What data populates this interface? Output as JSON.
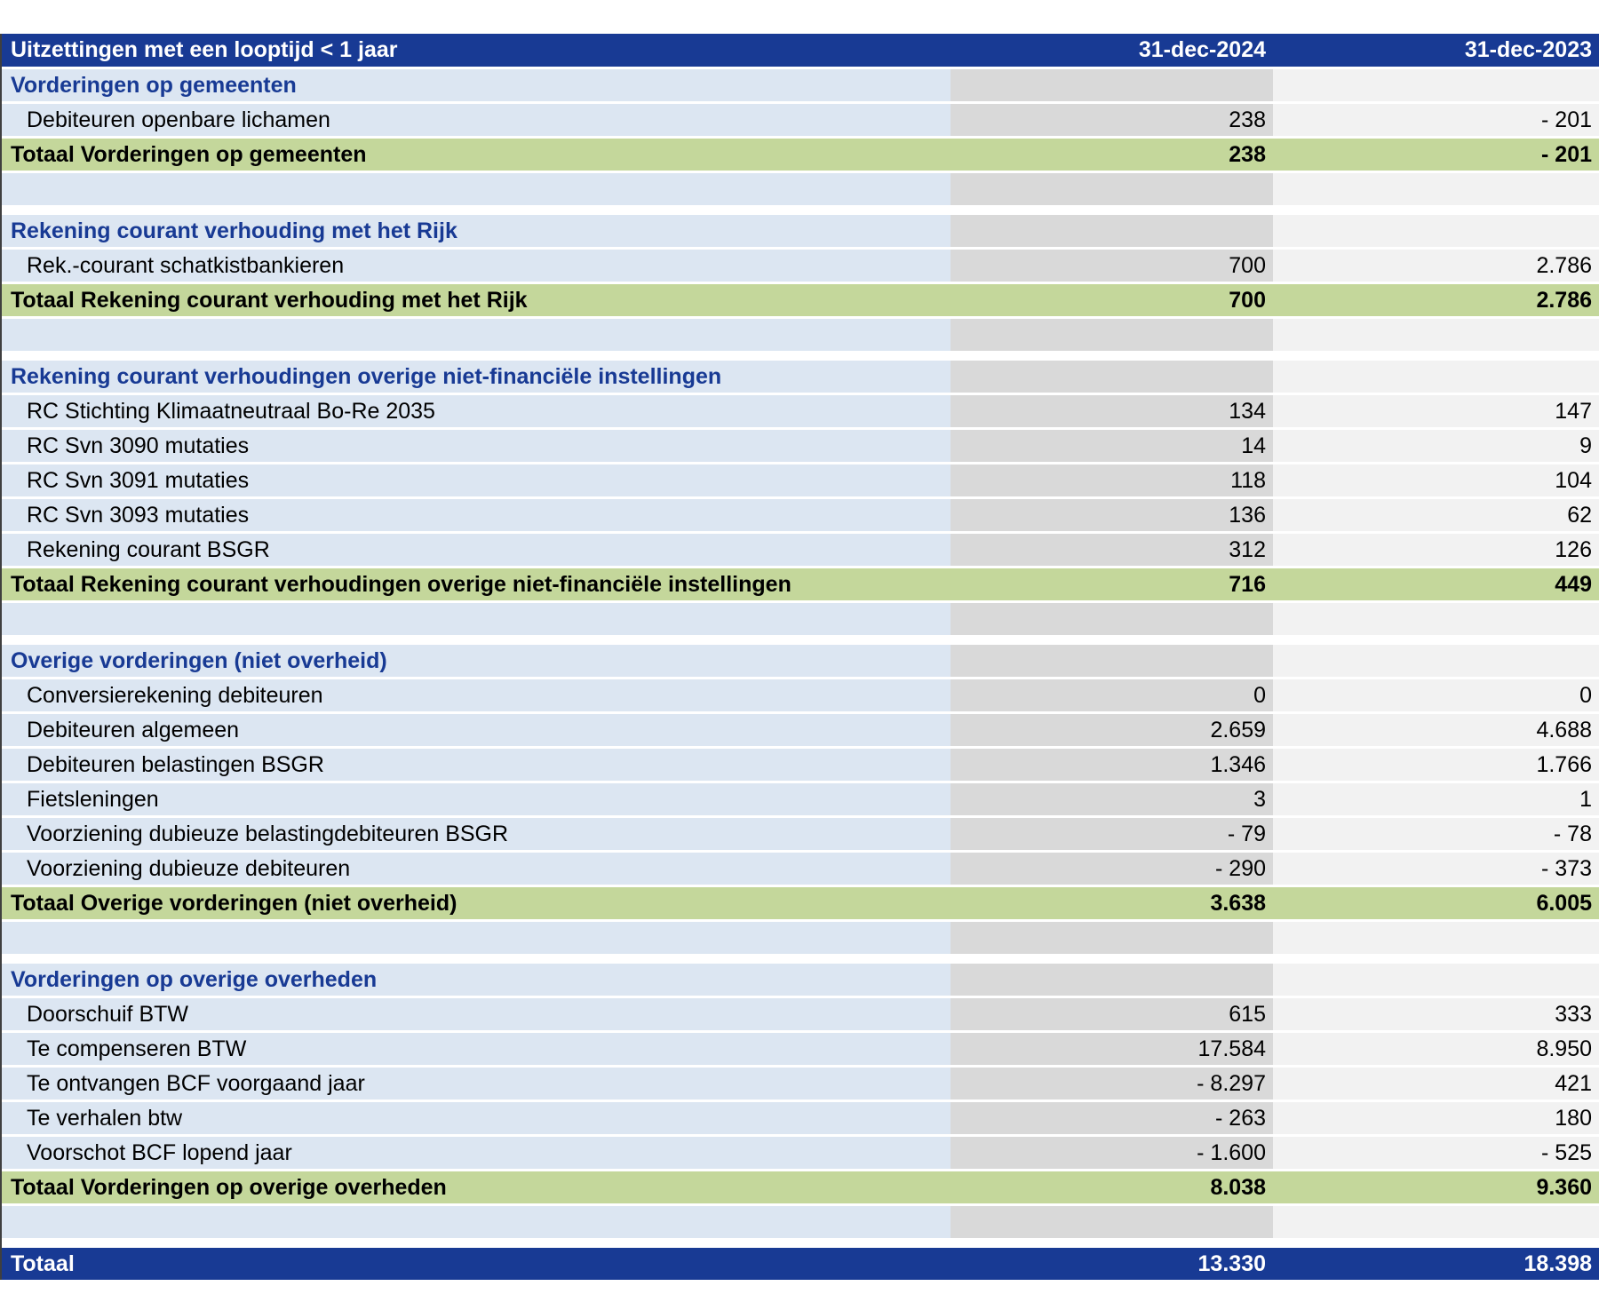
{
  "table": {
    "title": "Uitzettingen met een looptijd < 1 jaar",
    "columns": [
      "31-dec-2024",
      "31-dec-2023"
    ],
    "groups": [
      {
        "section": "Vorderingen op gemeenten",
        "rows": [
          {
            "label": "Debiteuren openbare lichamen",
            "v2024": "238",
            "v2023": "- 201"
          }
        ],
        "total": {
          "label": "Totaal Vorderingen op gemeenten",
          "v2024": "238",
          "v2023": "- 201"
        }
      },
      {
        "section": "Rekening courant verhouding met het Rijk",
        "rows": [
          {
            "label": "Rek.-courant schatkistbankieren",
            "v2024": "700",
            "v2023": "2.786"
          }
        ],
        "total": {
          "label": "Totaal Rekening courant verhouding met het Rijk",
          "v2024": "700",
          "v2023": "2.786"
        }
      },
      {
        "section": "Rekening courant verhoudingen overige niet-financiële instellingen",
        "rows": [
          {
            "label": "RC Stichting Klimaatneutraal Bo-Re 2035",
            "v2024": "134",
            "v2023": "147"
          },
          {
            "label": "RC Svn 3090 mutaties",
            "v2024": "14",
            "v2023": "9"
          },
          {
            "label": "RC Svn 3091 mutaties",
            "v2024": "118",
            "v2023": "104"
          },
          {
            "label": "RC Svn 3093 mutaties",
            "v2024": "136",
            "v2023": "62"
          },
          {
            "label": "Rekening courant BSGR",
            "v2024": "312",
            "v2023": "126"
          }
        ],
        "total": {
          "label": "Totaal Rekening courant verhoudingen overige niet-financiële instellingen",
          "v2024": "716",
          "v2023": "449"
        }
      },
      {
        "section": "Overige vorderingen (niet overheid)",
        "rows": [
          {
            "label": "Conversierekening debiteuren",
            "v2024": "0",
            "v2023": "0"
          },
          {
            "label": "Debiteuren algemeen",
            "v2024": "2.659",
            "v2023": "4.688"
          },
          {
            "label": "Debiteuren belastingen BSGR",
            "v2024": "1.346",
            "v2023": "1.766"
          },
          {
            "label": "Fietsleningen",
            "v2024": "3",
            "v2023": "1"
          },
          {
            "label": "Voorziening dubieuze belastingdebiteuren BSGR",
            "v2024": "- 79",
            "v2023": "- 78"
          },
          {
            "label": "Voorziening dubieuze debiteuren",
            "v2024": "- 290",
            "v2023": "- 373"
          }
        ],
        "total": {
          "label": "Totaal Overige vorderingen (niet overheid)",
          "v2024": "3.638",
          "v2023": "6.005"
        }
      },
      {
        "section": "Vorderingen op overige overheden",
        "rows": [
          {
            "label": "Doorschuif BTW",
            "v2024": "615",
            "v2023": "333"
          },
          {
            "label": "Te compenseren BTW",
            "v2024": "17.584",
            "v2023": "8.950"
          },
          {
            "label": "Te ontvangen BCF voorgaand jaar",
            "v2024": "- 8.297",
            "v2023": "421"
          },
          {
            "label": "Te verhalen btw",
            "v2024": "- 263",
            "v2023": "180"
          },
          {
            "label": "Voorschot BCF lopend jaar",
            "v2024": "- 1.600",
            "v2023": "- 525"
          }
        ],
        "total": {
          "label": "Totaal Vorderingen op overige overheden",
          "v2024": "8.038",
          "v2023": "9.360"
        }
      }
    ],
    "grand_total": {
      "label": "Totaal",
      "v2024": "13.330",
      "v2023": "18.398"
    }
  },
  "colors": {
    "header_bg": "#183A94",
    "section_text": "#183A94",
    "label_col_bg": "#DCE6F2",
    "col_2024_bg": "#D9D9D9",
    "col_2023_bg": "#F2F2F2",
    "total_row_bg": "#C4D79B",
    "header_text": "#FFFFFF",
    "body_text": "#000000"
  }
}
